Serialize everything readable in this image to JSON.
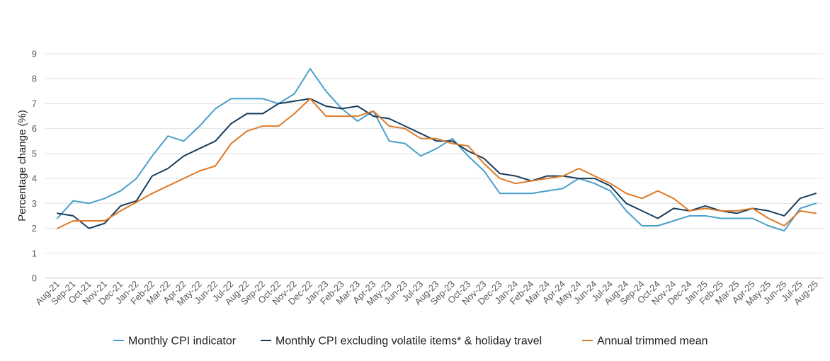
{
  "chart_data": {
    "type": "line",
    "title": "",
    "xlabel": "",
    "ylabel": "Percentage change (%)",
    "ylim": [
      0,
      9
    ],
    "yticks": [
      0,
      1,
      2,
      3,
      4,
      5,
      6,
      7,
      8,
      9
    ],
    "grid": true,
    "legend_position": "bottom",
    "categories": [
      "Aug-21",
      "Sep-21",
      "Oct-21",
      "Nov-21",
      "Dec-21",
      "Jan-22",
      "Feb-22",
      "Mar-22",
      "Apr-22",
      "May-22",
      "Jun-22",
      "Jul-22",
      "Aug-22",
      "Sep-22",
      "Oct-22",
      "Nov-22",
      "Dec-22",
      "Jan-23",
      "Feb-23",
      "Mar-23",
      "Apr-23",
      "May-23",
      "Jun-23",
      "Jul-23",
      "Aug-23",
      "Sep-23",
      "Oct-23",
      "Nov-23",
      "Dec-23",
      "Jan-24",
      "Feb-24",
      "Mar-24",
      "Apr-24",
      "May-24",
      "Jun-24",
      "Jul-24",
      "Aug-24",
      "Sep-24",
      "Oct-24",
      "Nov-24",
      "Dec-24",
      "Jan-25",
      "Feb-25",
      "Mar-25",
      "Apr-25",
      "May-25",
      "Jun-25",
      "Jul-25",
      "Aug-25"
    ],
    "series": [
      {
        "name": "Monthly CPI indicator",
        "color": "#4a9fcb",
        "values": [
          2.4,
          3.1,
          3.0,
          3.2,
          3.5,
          4.0,
          4.9,
          5.7,
          5.5,
          6.1,
          6.8,
          7.2,
          7.2,
          7.2,
          7.0,
          7.4,
          8.4,
          7.5,
          6.8,
          6.3,
          6.7,
          5.5,
          5.4,
          4.9,
          5.2,
          5.6,
          4.9,
          4.3,
          3.4,
          3.4,
          3.4,
          3.5,
          3.6,
          4.0,
          3.8,
          3.5,
          2.7,
          2.1,
          2.1,
          2.3,
          2.5,
          2.5,
          2.4,
          2.4,
          2.4,
          2.1,
          1.9,
          2.8,
          3.0
        ]
      },
      {
        "name": "Monthly CPI excluding volatile items* & holiday travel",
        "color": "#183d5c",
        "values": [
          2.6,
          2.5,
          2.0,
          2.2,
          2.9,
          3.1,
          4.1,
          4.4,
          4.9,
          5.2,
          5.5,
          6.2,
          6.6,
          6.6,
          7.0,
          7.1,
          7.2,
          6.9,
          6.8,
          6.9,
          6.5,
          6.4,
          6.1,
          5.8,
          5.5,
          5.5,
          5.1,
          4.8,
          4.2,
          4.1,
          3.9,
          4.1,
          4.1,
          4.0,
          4.0,
          3.7,
          3.0,
          2.7,
          2.4,
          2.8,
          2.7,
          2.9,
          2.7,
          2.6,
          2.8,
          2.7,
          2.5,
          3.2,
          3.4
        ]
      },
      {
        "name": "Annual trimmed mean",
        "color": "#de7a27",
        "values": [
          2.0,
          2.3,
          2.3,
          2.3,
          2.7,
          3.05,
          3.4,
          3.7,
          4.0,
          4.3,
          4.5,
          5.4,
          5.9,
          6.1,
          6.1,
          6.6,
          7.2,
          6.5,
          6.5,
          6.5,
          6.7,
          6.1,
          6.0,
          5.6,
          5.6,
          5.4,
          5.3,
          4.6,
          4.0,
          3.8,
          3.9,
          4.0,
          4.1,
          4.4,
          4.1,
          3.8,
          3.4,
          3.2,
          3.5,
          3.2,
          2.7,
          2.8,
          2.7,
          2.7,
          2.8,
          2.4,
          2.1,
          2.7,
          2.6
        ]
      }
    ]
  }
}
